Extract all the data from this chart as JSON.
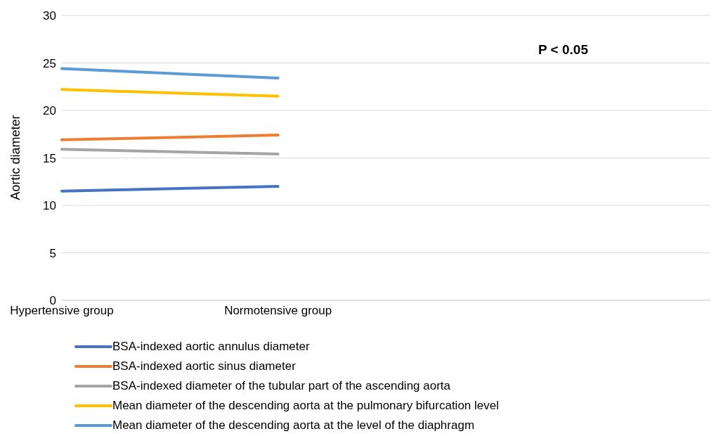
{
  "chart_data": {
    "type": "line",
    "ylabel": "Aortic diameter",
    "categories": [
      "Hypertensive group",
      "Normotensive group",
      null,
      null
    ],
    "series": [
      {
        "name": "BSA-indexed aortic annulus diameter",
        "color": "#4472c4",
        "values": [
          11.5,
          12.0,
          null,
          null
        ]
      },
      {
        "name": "BSA-indexed aortic sinus diameter",
        "color": "#ed7d31",
        "values": [
          16.9,
          17.4,
          null,
          null
        ]
      },
      {
        "name": "BSA-indexed diameter of the tubular part of the ascending aorta",
        "color": "#a5a5a5",
        "values": [
          15.9,
          15.4,
          null,
          null
        ]
      },
      {
        "name": "Mean diameter of the descending aorta at the pulmonary bifurcation level",
        "color": "#ffc000",
        "values": [
          22.2,
          21.5,
          null,
          null
        ]
      },
      {
        "name": "Mean diameter of the descending aorta at the level of the diaphragm",
        "color": "#5b9bd5",
        "values": [
          24.4,
          23.4,
          null,
          null
        ]
      }
    ],
    "ylim": [
      0,
      30
    ],
    "yticks": [
      0,
      5,
      10,
      15,
      20,
      25,
      30
    ],
    "grid": "y",
    "legend": "bottom",
    "marker": "none",
    "line_style": "solid",
    "annotations": [
      "P < 0.05"
    ]
  }
}
